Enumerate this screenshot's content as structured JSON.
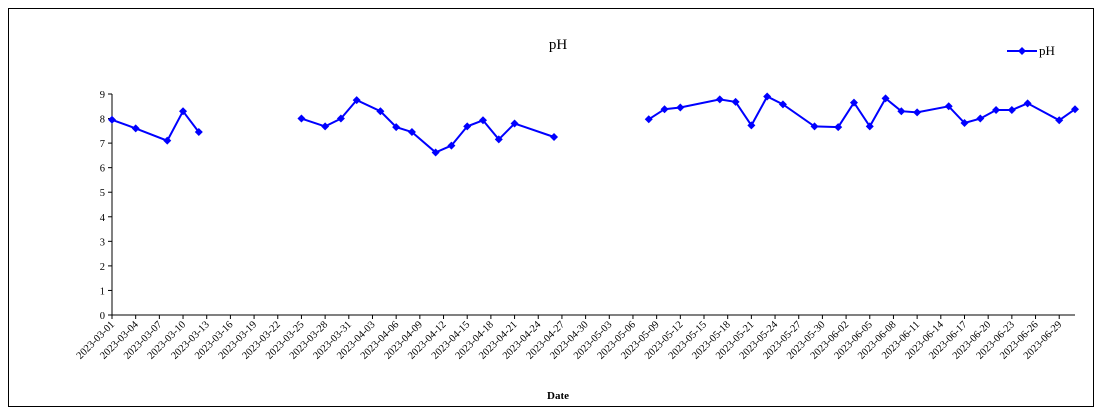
{
  "chart_data": {
    "type": "line",
    "title": "pH",
    "xlabel": "Date",
    "ylabel": "",
    "ylim": [
      0,
      9
    ],
    "yticks": [
      0,
      1,
      2,
      3,
      4,
      5,
      6,
      7,
      8,
      9
    ],
    "xlim": [
      "2023-03-01",
      "2023-07-01"
    ],
    "xtick_labels": [
      "2023-03-01",
      "2023-03-04",
      "2023-03-07",
      "2023-03-10",
      "2023-03-13",
      "2023-03-16",
      "2023-03-19",
      "2023-03-22",
      "2023-03-25",
      "2023-03-28",
      "2023-03-31",
      "2023-04-03",
      "2023-04-06",
      "2023-04-09",
      "2023-04-12",
      "2023-04-15",
      "2023-04-18",
      "2023-04-21",
      "2023-04-24",
      "2023-04-27",
      "2023-04-30",
      "2023-05-03",
      "2023-05-06",
      "2023-05-09",
      "2023-05-12",
      "2023-05-15",
      "2023-05-18",
      "2023-05-21",
      "2023-05-24",
      "2023-05-27",
      "2023-05-30",
      "2023-06-02",
      "2023-06-05",
      "2023-06-08",
      "2023-06-11",
      "2023-06-14",
      "2023-06-17",
      "2023-06-20",
      "2023-06-23",
      "2023-06-26",
      "2023-06-29"
    ],
    "grid": false,
    "legend": "top-right",
    "color": "#0000FF",
    "series": [
      {
        "name": "pH",
        "points": [
          [
            "2023-03-01",
            7.95
          ],
          [
            "2023-03-04",
            7.6
          ],
          [
            "2023-03-08",
            7.1
          ],
          [
            "2023-03-10",
            8.3
          ],
          [
            "2023-03-12",
            7.45
          ],
          null,
          [
            "2023-03-25",
            8.0
          ],
          [
            "2023-03-28",
            7.68
          ],
          [
            "2023-03-30",
            8.0
          ],
          [
            "2023-04-01",
            8.75
          ],
          [
            "2023-04-04",
            8.3
          ],
          [
            "2023-04-06",
            7.65
          ],
          [
            "2023-04-08",
            7.45
          ],
          [
            "2023-04-11",
            6.62
          ],
          [
            "2023-04-13",
            6.9
          ],
          [
            "2023-04-15",
            7.68
          ],
          [
            "2023-04-17",
            7.93
          ],
          [
            "2023-04-19",
            7.15
          ],
          [
            "2023-04-21",
            7.8
          ],
          [
            "2023-04-26",
            7.25
          ],
          null,
          [
            "2023-05-08",
            7.97
          ],
          [
            "2023-05-10",
            8.38
          ],
          [
            "2023-05-12",
            8.45
          ],
          [
            "2023-05-17",
            8.78
          ],
          [
            "2023-05-19",
            8.68
          ],
          [
            "2023-05-21",
            7.72
          ],
          [
            "2023-05-23",
            8.9
          ],
          [
            "2023-05-25",
            8.58
          ],
          [
            "2023-05-29",
            7.68
          ],
          [
            "2023-06-01",
            7.65
          ],
          [
            "2023-06-03",
            8.65
          ],
          [
            "2023-06-05",
            7.68
          ],
          [
            "2023-06-07",
            8.82
          ],
          [
            "2023-06-09",
            8.3
          ],
          [
            "2023-06-11",
            8.25
          ],
          [
            "2023-06-15",
            8.5
          ],
          [
            "2023-06-17",
            7.82
          ],
          [
            "2023-06-19",
            8.0
          ],
          [
            "2023-06-21",
            8.35
          ],
          [
            "2023-06-23",
            8.35
          ],
          [
            "2023-06-25",
            8.62
          ],
          [
            "2023-06-29",
            7.93
          ],
          [
            "2023-07-01",
            8.38
          ]
        ]
      }
    ]
  }
}
